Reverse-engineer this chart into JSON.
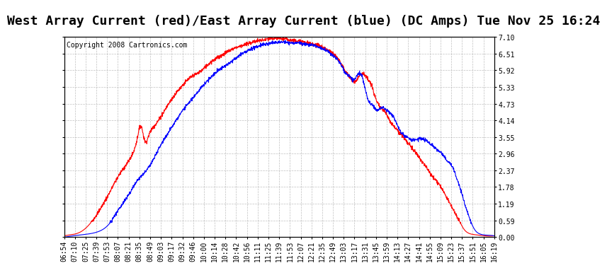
{
  "title": "West Array Current (red)/East Array Current (blue) (DC Amps) Tue Nov 25 16:24",
  "copyright": "Copyright 2008 Cartronics.com",
  "ylabel_right_ticks": [
    0.0,
    0.59,
    1.19,
    1.78,
    2.37,
    2.96,
    3.55,
    4.14,
    4.73,
    5.33,
    5.92,
    6.51,
    7.1
  ],
  "ymax": 7.1,
  "ymin": 0.0,
  "x_labels": [
    "06:54",
    "07:10",
    "07:25",
    "07:39",
    "07:53",
    "08:07",
    "08:21",
    "08:35",
    "08:49",
    "09:03",
    "09:17",
    "09:32",
    "09:46",
    "10:00",
    "10:14",
    "10:28",
    "10:42",
    "10:56",
    "11:11",
    "11:25",
    "11:39",
    "11:53",
    "12:07",
    "12:21",
    "12:35",
    "12:49",
    "13:03",
    "13:17",
    "13:31",
    "13:45",
    "13:59",
    "14:13",
    "14:27",
    "14:41",
    "14:55",
    "15:09",
    "15:23",
    "15:37",
    "15:51",
    "16:05",
    "16:19"
  ],
  "title_fontsize": 13,
  "copyright_fontsize": 7,
  "tick_fontsize": 7,
  "line_color_red": "#ff0000",
  "line_color_blue": "#0000ff",
  "background_color": "#ffffff",
  "grid_color": "#b0b0b0",
  "title_bg": "#d0d0d0",
  "red_x": [
    6.9,
    7.1,
    7.25,
    7.45,
    7.65,
    7.9,
    8.1,
    8.35,
    8.5,
    8.58,
    8.67,
    8.75,
    8.9,
    9.1,
    9.3,
    9.5,
    9.7,
    9.9,
    10.1,
    10.3,
    10.5,
    10.7,
    10.9,
    11.1,
    11.3,
    11.5,
    11.65,
    11.85,
    12.07,
    12.2,
    12.35,
    12.55,
    12.75,
    12.95,
    13.05,
    13.15,
    13.25,
    13.4,
    13.55,
    13.65,
    13.75,
    13.9,
    14.05,
    14.2,
    14.4,
    14.6,
    14.8,
    15.0,
    15.15,
    15.25,
    15.35,
    15.45,
    15.55,
    15.65,
    15.75,
    15.85,
    15.95,
    16.1,
    16.32
  ],
  "red_y": [
    0.05,
    0.1,
    0.18,
    0.45,
    0.9,
    1.6,
    2.2,
    2.8,
    3.5,
    3.95,
    3.4,
    3.6,
    4.0,
    4.5,
    5.0,
    5.4,
    5.7,
    5.9,
    6.2,
    6.4,
    6.6,
    6.75,
    6.85,
    6.95,
    7.0,
    7.05,
    7.05,
    7.0,
    6.95,
    6.9,
    6.85,
    6.75,
    6.55,
    6.2,
    5.9,
    5.7,
    5.5,
    5.8,
    5.6,
    5.3,
    4.8,
    4.5,
    4.1,
    3.8,
    3.4,
    3.0,
    2.55,
    2.1,
    1.8,
    1.5,
    1.2,
    0.9,
    0.6,
    0.3,
    0.15,
    0.1,
    0.08,
    0.05,
    0.05
  ],
  "blue_x": [
    6.9,
    7.1,
    7.25,
    7.45,
    7.65,
    7.9,
    8.1,
    8.35,
    8.5,
    8.67,
    8.9,
    9.1,
    9.3,
    9.5,
    9.7,
    9.9,
    10.1,
    10.3,
    10.5,
    10.7,
    10.9,
    11.1,
    11.3,
    11.5,
    11.65,
    11.85,
    12.07,
    12.2,
    12.35,
    12.55,
    12.75,
    12.95,
    13.05,
    13.15,
    13.25,
    13.4,
    13.55,
    13.65,
    13.75,
    13.85,
    13.95,
    14.1,
    14.25,
    14.4,
    14.55,
    14.7,
    14.85,
    15.0,
    15.15,
    15.3,
    15.42,
    15.52,
    15.6,
    15.68,
    15.75,
    15.82,
    15.9,
    16.0,
    16.1,
    16.32
  ],
  "blue_y": [
    0.0,
    0.05,
    0.08,
    0.12,
    0.2,
    0.5,
    1.0,
    1.6,
    2.0,
    2.3,
    2.9,
    3.5,
    4.0,
    4.5,
    4.9,
    5.3,
    5.65,
    5.95,
    6.15,
    6.4,
    6.6,
    6.75,
    6.85,
    6.9,
    6.92,
    6.9,
    6.88,
    6.85,
    6.8,
    6.7,
    6.5,
    6.15,
    5.85,
    5.7,
    5.6,
    5.8,
    4.9,
    4.7,
    4.5,
    4.6,
    4.5,
    4.3,
    3.8,
    3.55,
    3.45,
    3.5,
    3.4,
    3.2,
    3.0,
    2.7,
    2.45,
    2.0,
    1.6,
    1.15,
    0.8,
    0.5,
    0.25,
    0.12,
    0.08,
    0.05
  ]
}
